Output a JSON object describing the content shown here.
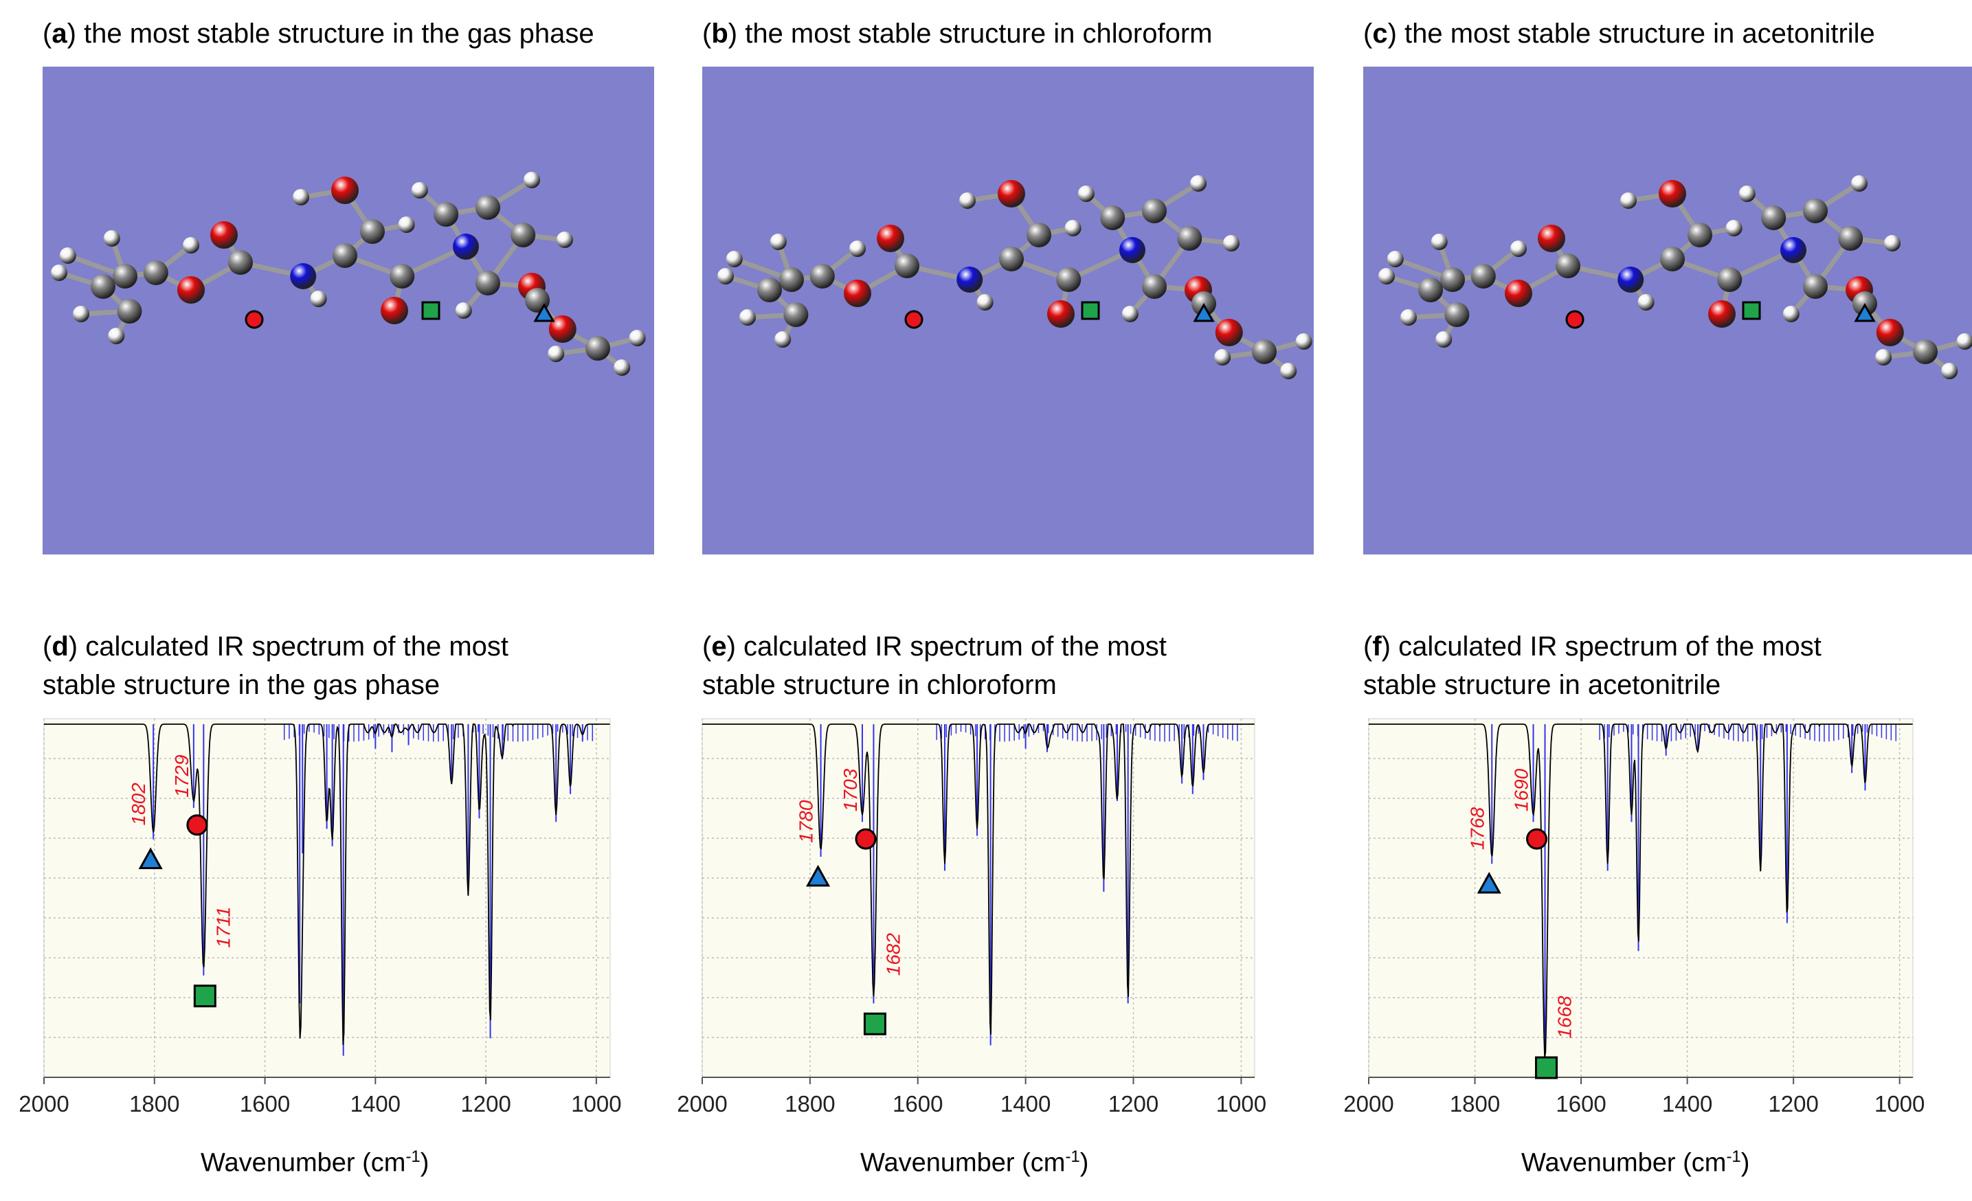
{
  "colors": {
    "mol_bg": "#8080cc",
    "spec_bg": "#fbfbf0",
    "stick": "#3333ee",
    "envelope": "#000000",
    "label_red": "#e8141e",
    "marker_circle": "#e8141e",
    "marker_triangle": "#1f7ed6",
    "marker_square": "#1fa44a",
    "atom_O": "#e00c0c",
    "atom_N": "#1212d8",
    "atom_C": "#8a8a8a",
    "atom_H": "#f2f2f2"
  },
  "panels": [
    {
      "id": "a",
      "text": "the most stable structure in the gas phase"
    },
    {
      "id": "b",
      "text": "the most stable structure in chloroform"
    },
    {
      "id": "c",
      "text": "the most stable structure in acetonitrile"
    }
  ],
  "chart_data": [
    {
      "type": "line",
      "id": "d",
      "title_line1": "calculated IR spectrum of the most",
      "title_line2": "stable structure in the gas phase",
      "xlabel_main": "Wavenumber (cm",
      "xlabel_sup": "-1",
      "xlabel_close": ")",
      "xlim": [
        2000,
        975
      ],
      "ylim": [
        0,
        1
      ],
      "xticks": [
        2000,
        1800,
        1600,
        1400,
        1200,
        1000
      ],
      "tick_labels": [
        "2000",
        "1800",
        "1600",
        "1400",
        "1200",
        "1000"
      ],
      "grid": true,
      "peaks": [
        {
          "x": 1802,
          "y": 0.31,
          "w": 6
        },
        {
          "x": 1729,
          "y": 0.22,
          "w": 6
        },
        {
          "x": 1711,
          "y": 0.7,
          "w": 6
        },
        {
          "x": 1537,
          "y": 0.78,
          "w": 4
        },
        {
          "x": 1532,
          "y": 0.35,
          "w": 4
        },
        {
          "x": 1488,
          "y": 0.28,
          "w": 4
        },
        {
          "x": 1478,
          "y": 0.33,
          "w": 4
        },
        {
          "x": 1458,
          "y": 0.93,
          "w": 4
        },
        {
          "x": 1400,
          "y": 0.05,
          "w": 4
        },
        {
          "x": 1370,
          "y": 0.06,
          "w": 4
        },
        {
          "x": 1340,
          "y": 0.04,
          "w": 5
        },
        {
          "x": 1262,
          "y": 0.15,
          "w": 4
        },
        {
          "x": 1232,
          "y": 0.47,
          "w": 4
        },
        {
          "x": 1212,
          "y": 0.25,
          "w": 4
        },
        {
          "x": 1192,
          "y": 0.88,
          "w": 4
        },
        {
          "x": 1170,
          "y": 0.08,
          "w": 4
        },
        {
          "x": 1073,
          "y": 0.26,
          "w": 4
        },
        {
          "x": 1047,
          "y": 0.18,
          "w": 4
        },
        {
          "x": 1025,
          "y": 0.03,
          "w": 4
        }
      ],
      "annotations": [
        {
          "label": "1802",
          "x": 1802,
          "marker": "triangle"
        },
        {
          "label": "1729",
          "x": 1729,
          "marker": "circle"
        },
        {
          "label": "1711",
          "x": 1711,
          "marker": "square"
        }
      ]
    },
    {
      "type": "line",
      "id": "e",
      "title_line1": "calculated IR spectrum of the most",
      "title_line2": "stable structure in chloroform",
      "xlabel_main": "Wavenumber (cm",
      "xlabel_sup": "-1",
      "xlabel_close": ")",
      "xlim": [
        2000,
        975
      ],
      "ylim": [
        0,
        1
      ],
      "xticks": [
        2000,
        1800,
        1600,
        1400,
        1200,
        1000
      ],
      "tick_labels": [
        "2000",
        "1800",
        "1600",
        "1400",
        "1200",
        "1000"
      ],
      "grid": true,
      "peaks": [
        {
          "x": 1780,
          "y": 0.36,
          "w": 6
        },
        {
          "x": 1703,
          "y": 0.26,
          "w": 6
        },
        {
          "x": 1682,
          "y": 0.78,
          "w": 6
        },
        {
          "x": 1550,
          "y": 0.4,
          "w": 4
        },
        {
          "x": 1490,
          "y": 0.3,
          "w": 4
        },
        {
          "x": 1465,
          "y": 0.9,
          "w": 4
        },
        {
          "x": 1400,
          "y": 0.05,
          "w": 4
        },
        {
          "x": 1360,
          "y": 0.06,
          "w": 4
        },
        {
          "x": 1255,
          "y": 0.46,
          "w": 4
        },
        {
          "x": 1230,
          "y": 0.2,
          "w": 4
        },
        {
          "x": 1210,
          "y": 0.78,
          "w": 4
        },
        {
          "x": 1110,
          "y": 0.15,
          "w": 4
        },
        {
          "x": 1090,
          "y": 0.18,
          "w": 4
        },
        {
          "x": 1070,
          "y": 0.14,
          "w": 4
        }
      ],
      "annotations": [
        {
          "label": "1780",
          "x": 1780,
          "marker": "triangle"
        },
        {
          "label": "1703",
          "x": 1703,
          "marker": "circle"
        },
        {
          "label": "1682",
          "x": 1682,
          "marker": "square"
        }
      ]
    },
    {
      "type": "line",
      "id": "f",
      "title_line1": "calculated IR spectrum of the most",
      "title_line2": "stable structure in acetonitrile",
      "xlabel_main": "Wavenumber (cm",
      "xlabel_sup": "-1",
      "xlabel_close": ")",
      "xlim": [
        2000,
        975
      ],
      "ylim": [
        0,
        1
      ],
      "xticks": [
        2000,
        1800,
        1600,
        1400,
        1200,
        1000
      ],
      "tick_labels": [
        "2000",
        "1800",
        "1600",
        "1400",
        "1200",
        "1000"
      ],
      "grid": true,
      "peaks": [
        {
          "x": 1768,
          "y": 0.38,
          "w": 6
        },
        {
          "x": 1690,
          "y": 0.26,
          "w": 6
        },
        {
          "x": 1668,
          "y": 0.96,
          "w": 6
        },
        {
          "x": 1550,
          "y": 0.4,
          "w": 4
        },
        {
          "x": 1505,
          "y": 0.26,
          "w": 4
        },
        {
          "x": 1492,
          "y": 0.63,
          "w": 4
        },
        {
          "x": 1440,
          "y": 0.07,
          "w": 4
        },
        {
          "x": 1380,
          "y": 0.06,
          "w": 4
        },
        {
          "x": 1262,
          "y": 0.4,
          "w": 4
        },
        {
          "x": 1212,
          "y": 0.55,
          "w": 4
        },
        {
          "x": 1090,
          "y": 0.12,
          "w": 4
        },
        {
          "x": 1065,
          "y": 0.17,
          "w": 4
        }
      ],
      "annotations": [
        {
          "label": "1768",
          "x": 1768,
          "marker": "triangle"
        },
        {
          "label": "1690",
          "x": 1690,
          "marker": "circle"
        },
        {
          "label": "1668",
          "x": 1668,
          "marker": "square"
        }
      ]
    }
  ]
}
